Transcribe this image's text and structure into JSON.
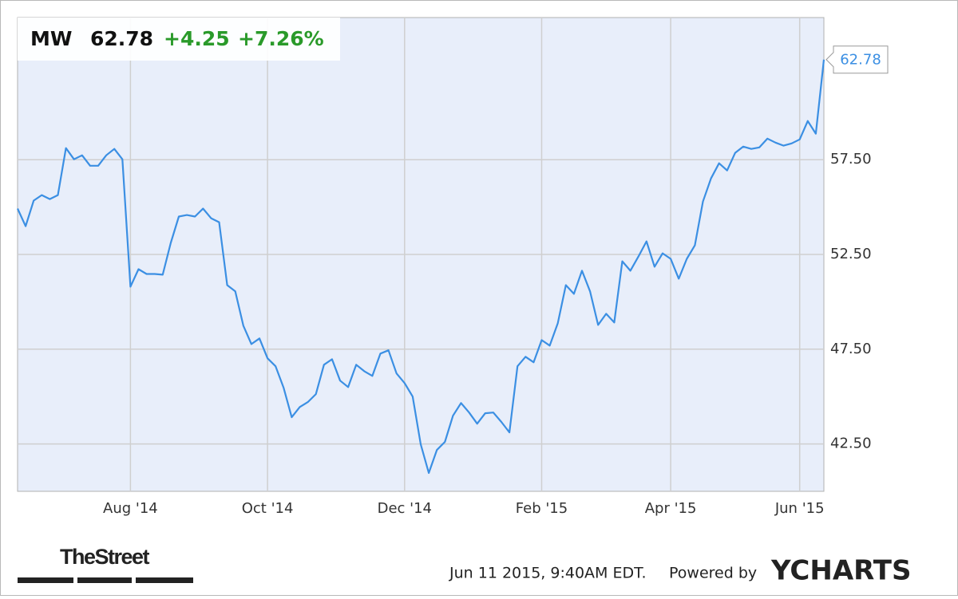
{
  "chart_data": {
    "type": "line",
    "header": {
      "ticker": "MW",
      "price": 62.78,
      "change": "+4.25",
      "change_pct": "+7.26%"
    },
    "brand": "TheStreet",
    "timestamp": "Jun 11 2015, 9:40AM EDT.",
    "powered_by": "Powered by",
    "provider": "YCHARTS",
    "categories": [
      null,
      null,
      null,
      null,
      null,
      null,
      null,
      null,
      null,
      null,
      null,
      null,
      null,
      null,
      "Aug '14",
      null,
      null,
      null,
      null,
      null,
      null,
      null,
      null,
      null,
      null,
      null,
      null,
      null,
      null,
      null,
      null,
      "Oct '14",
      null,
      null,
      null,
      null,
      null,
      null,
      null,
      null,
      null,
      null,
      null,
      null,
      null,
      null,
      null,
      null,
      "Dec '14",
      null,
      null,
      null,
      null,
      null,
      null,
      null,
      null,
      null,
      null,
      null,
      null,
      null,
      null,
      null,
      null,
      "Feb '15",
      null,
      null,
      null,
      null,
      null,
      null,
      null,
      null,
      null,
      null,
      null,
      null,
      null,
      null,
      null,
      "Apr '15",
      null,
      null,
      null,
      null,
      null,
      null,
      null,
      null,
      null,
      null,
      null,
      null,
      null,
      null,
      null,
      "Jun '15",
      null,
      null,
      null
    ],
    "series": [
      {
        "name": "MW",
        "color": "#3b8fe3",
        "values": [
          54.92,
          53.99,
          55.34,
          55.63,
          55.42,
          55.63,
          58.11,
          57.52,
          57.73,
          57.18,
          57.18,
          57.73,
          58.07,
          57.52,
          50.8,
          51.72,
          51.47,
          51.47,
          51.43,
          53.11,
          54.5,
          54.58,
          54.5,
          54.92,
          54.41,
          54.2,
          50.88,
          50.55,
          48.74,
          47.77,
          48.07,
          47.02,
          46.6,
          45.46,
          43.91,
          44.45,
          44.71,
          45.13,
          46.68,
          46.97,
          45.84,
          45.5,
          46.68,
          46.34,
          46.09,
          47.27,
          47.44,
          46.22,
          45.71,
          45.0,
          42.48,
          40.97,
          42.18,
          42.61,
          43.99,
          44.66,
          44.16,
          43.57,
          44.12,
          44.16,
          43.66,
          43.11,
          46.6,
          47.1,
          46.81,
          47.98,
          47.69,
          48.87,
          50.88,
          50.42,
          51.64,
          50.55,
          48.78,
          49.37,
          48.91,
          52.14,
          51.64,
          52.39,
          53.19,
          51.85,
          52.56,
          52.27,
          51.22,
          52.27,
          52.98,
          55.29,
          56.51,
          57.31,
          56.93,
          57.86,
          58.19,
          58.07,
          58.15,
          58.61,
          58.4,
          58.24,
          58.36,
          58.57,
          59.54,
          58.87,
          62.78
        ]
      }
    ],
    "ylim": [
      40,
      65
    ],
    "yticks": [
      {
        "value": 42.5,
        "label": "42.50"
      },
      {
        "value": 47.5,
        "label": "47.50"
      },
      {
        "value": 52.5,
        "label": "52.50"
      },
      {
        "value": 57.5,
        "label": "57.50"
      }
    ],
    "grid": true
  }
}
